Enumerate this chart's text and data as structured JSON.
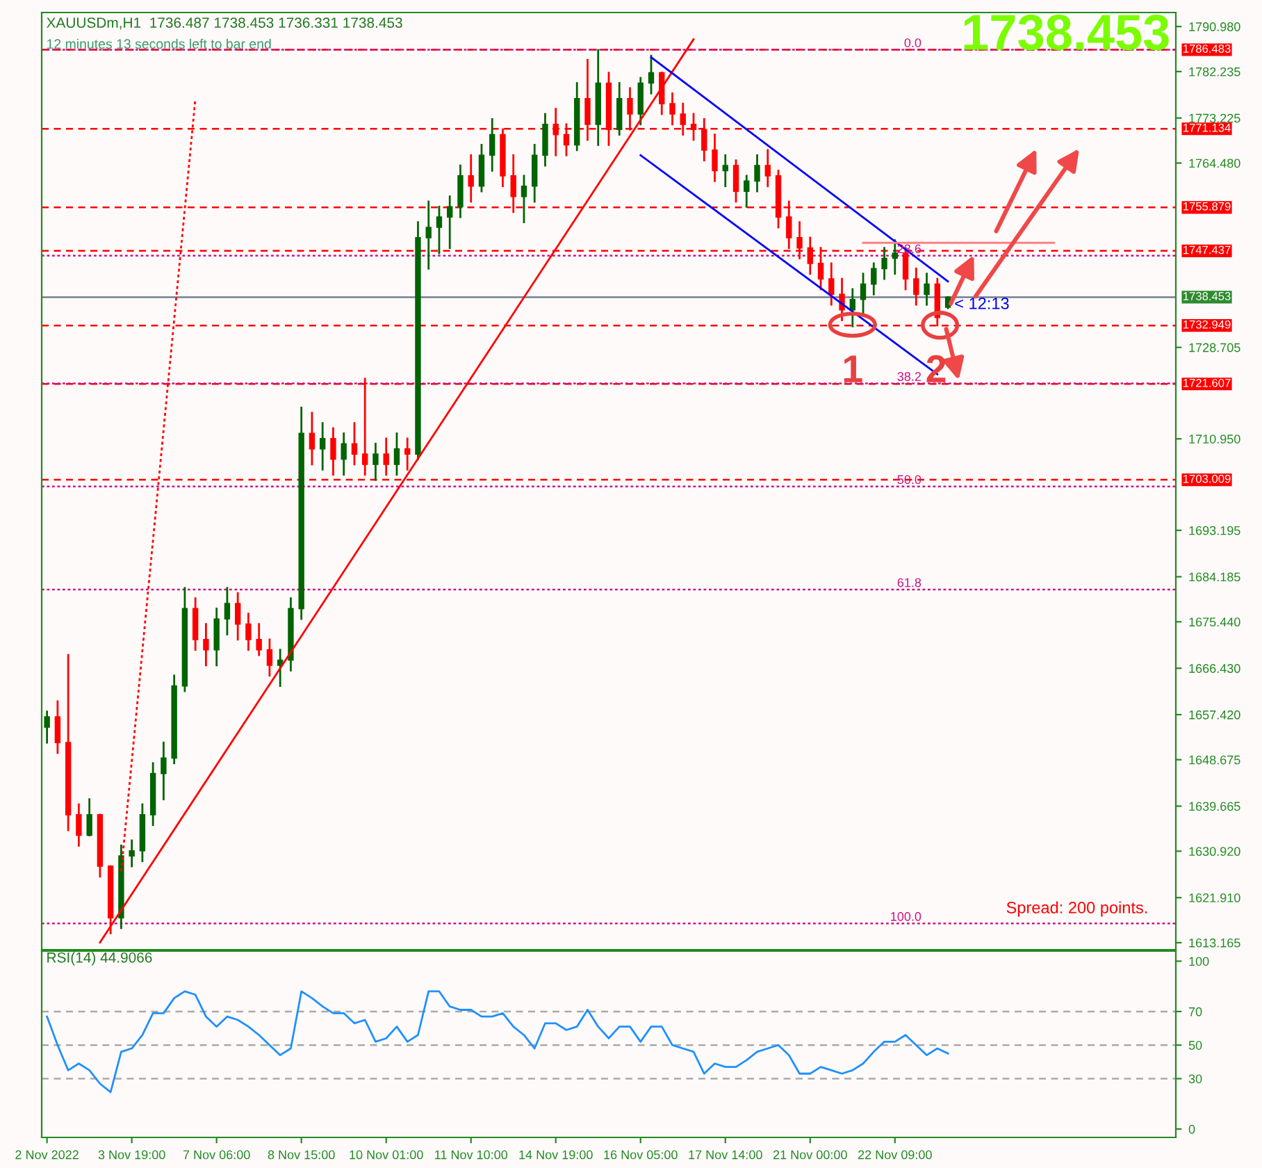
{
  "chart_data": [
    {
      "type": "candlestick",
      "title": "XAUUSDm,H1  1736.487 1738.453 1736.331 1738.453",
      "subtitle": "12 minutes 13 seconds left to bar end",
      "categories": [
        null,
        null,
        null,
        null,
        null,
        null,
        null,
        null,
        null,
        null,
        null,
        null,
        null,
        null,
        null,
        null,
        null,
        null,
        null,
        null,
        null,
        null,
        null,
        null,
        null,
        null,
        null,
        null,
        null,
        null,
        null,
        null,
        null,
        null,
        null,
        null,
        null,
        null,
        null,
        null,
        null,
        null,
        null,
        null,
        null,
        null,
        null,
        null,
        null,
        null,
        null,
        null,
        null,
        null,
        null,
        null,
        null,
        null,
        null,
        null,
        null,
        null,
        null,
        null,
        null,
        null,
        null,
        null,
        null,
        null,
        null,
        null,
        null,
        null,
        null,
        null,
        null,
        null,
        null,
        null,
        null,
        null,
        null,
        null,
        null,
        null,
        null,
        null,
        null,
        null,
        null,
        null,
        null,
        null,
        null,
        null,
        null,
        null,
        null,
        null,
        null,
        null,
        null,
        null,
        null,
        null,
        null
      ],
      "ohlc": [
        [
          1655,
          1658,
          1652,
          1657
        ],
        [
          1657,
          1660,
          1650,
          1652
        ],
        [
          1652,
          1669,
          1635,
          1638
        ],
        [
          1638,
          1640,
          1632,
          1634
        ],
        [
          1634,
          1641,
          1634,
          1638
        ],
        [
          1638,
          1638,
          1626,
          1628
        ],
        [
          1628,
          1628,
          1615,
          1618
        ],
        [
          1618,
          1632,
          1616,
          1630
        ],
        [
          1630,
          1633,
          1628,
          1631
        ],
        [
          1631,
          1640,
          1629,
          1638
        ],
        [
          1638,
          1648,
          1636,
          1646
        ],
        [
          1646,
          1652,
          1641,
          1649
        ],
        [
          1649,
          1665,
          1648,
          1663
        ],
        [
          1663,
          1682,
          1662,
          1678
        ],
        [
          1678,
          1680,
          1670,
          1672
        ],
        [
          1672,
          1675,
          1667,
          1670
        ],
        [
          1670,
          1678,
          1667,
          1676
        ],
        [
          1676,
          1682,
          1673,
          1679
        ],
        [
          1679,
          1681,
          1672,
          1675
        ],
        [
          1675,
          1677,
          1670,
          1672
        ],
        [
          1672,
          1675,
          1669,
          1670
        ],
        [
          1670,
          1672,
          1665,
          1667
        ],
        [
          1667,
          1670,
          1663,
          1668
        ],
        [
          1668,
          1680,
          1666,
          1678
        ],
        [
          1678,
          1717,
          1676,
          1712
        ],
        [
          1712,
          1716,
          1706,
          1709
        ],
        [
          1709,
          1714,
          1705,
          1711
        ],
        [
          1711,
          1713,
          1704,
          1707
        ],
        [
          1707,
          1712,
          1704,
          1710
        ],
        [
          1710,
          1714,
          1706,
          1708
        ],
        [
          1708,
          1722.6,
          1704,
          1706
        ],
        [
          1706,
          1710,
          1703,
          1708
        ],
        [
          1708,
          1711,
          1704,
          1706
        ],
        [
          1706,
          1712,
          1704,
          1709
        ],
        [
          1709,
          1711,
          1705,
          1708
        ],
        [
          1708,
          1753,
          1707,
          1750
        ],
        [
          1750,
          1757,
          1744,
          1752
        ],
        [
          1752,
          1756,
          1747,
          1754
        ],
        [
          1754,
          1758,
          1748,
          1756
        ],
        [
          1756,
          1764,
          1754,
          1762
        ],
        [
          1762,
          1766,
          1757,
          1760
        ],
        [
          1760,
          1768,
          1759,
          1766
        ],
        [
          1766,
          1773,
          1763,
          1770
        ],
        [
          1770,
          1771,
          1760,
          1762
        ],
        [
          1762,
          1766,
          1755,
          1758
        ],
        [
          1758,
          1762,
          1753,
          1760
        ],
        [
          1760,
          1768,
          1757,
          1766
        ],
        [
          1766,
          1774,
          1764,
          1772
        ],
        [
          1772,
          1775,
          1766,
          1770
        ],
        [
          1770,
          1772,
          1766,
          1768
        ],
        [
          1768,
          1780,
          1767,
          1777
        ],
        [
          1777,
          1784.5,
          1769,
          1772
        ],
        [
          1772,
          1786.4,
          1768,
          1780
        ],
        [
          1780,
          1782,
          1768,
          1771
        ],
        [
          1771,
          1780,
          1770,
          1777
        ],
        [
          1777,
          1779,
          1771,
          1774
        ],
        [
          1774,
          1781,
          1772,
          1780
        ],
        [
          1780,
          1785.3,
          1778,
          1782
        ],
        [
          1782,
          1782,
          1774,
          1776
        ],
        [
          1776,
          1778,
          1772,
          1774
        ],
        [
          1774,
          1776,
          1770,
          1772
        ],
        [
          1772,
          1774,
          1769,
          1771
        ],
        [
          1771,
          1773,
          1765,
          1767
        ],
        [
          1767,
          1770,
          1761,
          1763
        ],
        [
          1763,
          1766,
          1760,
          1764
        ],
        [
          1764,
          1765,
          1757,
          1759
        ],
        [
          1759,
          1762,
          1756,
          1761
        ],
        [
          1761,
          1766,
          1759,
          1764
        ],
        [
          1764,
          1767,
          1760,
          1762
        ],
        [
          1762,
          1763,
          1752,
          1754
        ],
        [
          1754,
          1757,
          1748,
          1750
        ],
        [
          1750,
          1753,
          1746,
          1748
        ],
        [
          1748,
          1750,
          1743,
          1745
        ],
        [
          1745,
          1748,
          1740,
          1742
        ],
        [
          1742,
          1745,
          1737,
          1739
        ],
        [
          1739,
          1742,
          1734,
          1736
        ],
        [
          1736,
          1740,
          1732.8,
          1738
        ],
        [
          1738,
          1743,
          1735,
          1741
        ],
        [
          1741,
          1745,
          1739,
          1744
        ],
        [
          1744,
          1748,
          1742,
          1746
        ],
        [
          1746,
          1749.5,
          1743,
          1747
        ],
        [
          1747,
          1748,
          1740,
          1742
        ],
        [
          1742,
          1744,
          1737,
          1739
        ],
        [
          1739,
          1743,
          1737,
          1741
        ],
        [
          1741,
          1742,
          1733,
          1734.5
        ],
        [
          1736.487,
          1738.453,
          1736.331,
          1738.453
        ],
        null,
        null,
        null,
        null,
        null,
        null,
        null,
        null,
        null,
        null,
        null,
        null,
        null,
        null,
        null,
        null,
        null,
        null,
        null,
        null,
        null
      ],
      "colors": [
        "#006400",
        "#ff0000",
        "#ff0000",
        "#ff0000",
        "#006400",
        "#ff0000",
        "#ff0000",
        "#006400",
        "#006400",
        "#006400",
        "#006400",
        "#006400",
        "#006400",
        "#006400",
        "#ff0000",
        "#ff0000",
        "#006400",
        "#006400",
        "#ff0000",
        "#ff0000",
        "#ff0000",
        "#ff0000",
        "#006400",
        "#006400",
        "#006400",
        "#ff0000",
        "#006400",
        "#ff0000",
        "#006400",
        "#ff0000",
        "#ff0000",
        "#006400",
        "#ff0000",
        "#006400",
        "#ff0000",
        "#006400",
        "#006400",
        "#006400",
        "#006400",
        "#006400",
        "#ff0000",
        "#006400",
        "#006400",
        "#ff0000",
        "#ff0000",
        "#006400",
        "#006400",
        "#006400",
        "#ff0000",
        "#ff0000",
        "#006400",
        "#ff0000",
        "#006400",
        "#ff0000",
        "#006400",
        "#ff0000",
        "#006400",
        "#006400",
        "#ff0000",
        "#ff0000",
        "#ff0000",
        "#ff0000",
        "#ff0000",
        "#ff0000",
        "#006400",
        "#ff0000",
        "#006400",
        "#006400",
        "#ff0000",
        "#ff0000",
        "#ff0000",
        "#ff0000",
        "#ff0000",
        "#ff0000",
        "#ff0000",
        "#ff0000",
        "#006400",
        "#006400",
        "#006400",
        "#006400",
        "#006400",
        "#ff0000",
        "#ff0000",
        "#006400",
        "#ff0000",
        "#006400",
        null,
        null,
        null,
        null,
        null,
        null,
        null,
        null,
        null,
        null,
        null,
        null,
        null,
        null,
        null,
        null,
        null,
        null,
        null,
        null,
        null
      ],
      "ylim": [
        1611.8,
        1793.7
      ],
      "yticks": [
        {
          "value": 1790.98,
          "label": "1790.980"
        },
        1782.235,
        1773.225,
        {
          "value": 1764.48,
          "label": "1764.480"
        },
        1728.705,
        {
          "value": 1710.95,
          "label": "1710.950"
        },
        1693.195,
        1684.185,
        {
          "value": 1675.44,
          "label": "1675.440"
        },
        {
          "value": 1666.43,
          "label": "1666.430"
        },
        {
          "value": 1657.42,
          "label": "1657.420"
        },
        1648.675,
        1639.665,
        {
          "value": 1630.92,
          "label": "1630.920"
        },
        {
          "value": 1621.91,
          "label": "1621.910"
        },
        1613.165
      ],
      "ref_lines": [
        {
          "axis": "y",
          "value": 1786.483,
          "label": "1786.483",
          "color": "#ff0000",
          "line_style": "dashed"
        },
        {
          "axis": "y",
          "value": 1771.134,
          "label": "1771.134",
          "color": "#ff0000",
          "line_style": "dashed"
        },
        {
          "axis": "y",
          "value": 1755.879,
          "label": "1755.879",
          "color": "#ff0000",
          "line_style": "dashed"
        },
        {
          "axis": "y",
          "value": 1747.437,
          "label": "1747.437",
          "color": "#ff0000",
          "line_style": "dashed"
        },
        {
          "axis": "y",
          "value": 1738.453,
          "label": "1738.453",
          "color": "#708090",
          "line_style": "solid"
        },
        {
          "axis": "y",
          "value": 1732.949,
          "label": "1732.949",
          "color": "#ff0000",
          "line_style": "dashed"
        },
        {
          "axis": "y",
          "value": 1721.607,
          "label": "1721.607",
          "color": "#ff0000",
          "line_style": "dashed"
        },
        {
          "axis": "y",
          "value": 1703.009,
          "label": "1703.009",
          "color": "#ff0000",
          "line_style": "dashed"
        },
        {
          "axis": "y",
          "value": 1786.48,
          "color": "#c71585",
          "line_style": "dotted"
        },
        {
          "axis": "y",
          "value": 1746.5,
          "color": "#c71585",
          "line_style": "dotted"
        },
        {
          "axis": "y",
          "value": 1721.7,
          "color": "#c71585",
          "line_style": "dotted"
        },
        {
          "axis": "y",
          "value": 1701.7,
          "color": "#c71585",
          "line_style": "dotted"
        },
        {
          "axis": "y",
          "value": 1681.7,
          "color": "#c71585",
          "line_style": "dotted"
        },
        {
          "axis": "y",
          "value": 1616.9,
          "color": "#c71585",
          "line_style": "dotted"
        }
      ],
      "series": [
        {
          "type": "line",
          "values": [
            null,
            null,
            null,
            null,
            null,
            1613.2,
            null,
            null,
            null,
            null,
            null,
            null,
            null,
            null,
            null,
            null,
            null,
            null,
            null,
            null,
            null,
            null,
            null,
            null,
            null,
            null,
            null,
            null,
            null,
            null,
            null,
            null,
            null,
            null,
            null,
            null,
            null,
            null,
            null,
            null,
            null,
            null,
            null,
            null,
            null,
            null,
            null,
            null,
            null,
            null,
            null,
            null,
            null,
            null,
            null,
            null,
            null,
            null,
            null,
            null,
            null,
            1788.5,
            null,
            null,
            null,
            null,
            null,
            null,
            null,
            null,
            null,
            null,
            null,
            null,
            null,
            null,
            null,
            null,
            null,
            null,
            null,
            null,
            null,
            null,
            null,
            null,
            null,
            null,
            null,
            null,
            null,
            null,
            null,
            null,
            null,
            null,
            null,
            null,
            null,
            null,
            null,
            null,
            null,
            null,
            null,
            null,
            null
          ],
          "color": "#ff0000",
          "line_style": "solid"
        },
        {
          "type": "line",
          "values": [
            null,
            null,
            null,
            null,
            null,
            null,
            null,
            1627,
            null,
            null,
            null,
            null,
            null,
            null,
            1777,
            null,
            null,
            null,
            null,
            null,
            null,
            null,
            null,
            null,
            null,
            null,
            null,
            null,
            null,
            null,
            null,
            null,
            null,
            null,
            null,
            null,
            null,
            null,
            null,
            null,
            null,
            null,
            null,
            null,
            null,
            null,
            null,
            null,
            null,
            null,
            null,
            null,
            null,
            null,
            null,
            null,
            null,
            null,
            null,
            null,
            null,
            null,
            null,
            null,
            null,
            null,
            null,
            null,
            null,
            null,
            null,
            null,
            null,
            null,
            null,
            null,
            null,
            null,
            null,
            null,
            null,
            null,
            null,
            null,
            null,
            null,
            null,
            null,
            null,
            null,
            null,
            null,
            null,
            null,
            null,
            null,
            null,
            null,
            null,
            null,
            null,
            null,
            null,
            null,
            null,
            null,
            null
          ],
          "color": "#ff0000",
          "line_style": "dotted"
        },
        {
          "type": "line",
          "values": [
            null,
            null,
            null,
            null,
            null,
            null,
            null,
            null,
            null,
            null,
            null,
            null,
            null,
            null,
            null,
            null,
            null,
            null,
            null,
            null,
            null,
            null,
            null,
            null,
            null,
            null,
            null,
            null,
            null,
            null,
            null,
            null,
            null,
            null,
            null,
            null,
            null,
            null,
            null,
            null,
            null,
            null,
            null,
            null,
            null,
            null,
            null,
            null,
            null,
            null,
            null,
            null,
            null,
            null,
            null,
            null,
            null,
            1785,
            null,
            null,
            null,
            null,
            null,
            null,
            null,
            null,
            null,
            null,
            null,
            null,
            null,
            null,
            null,
            null,
            null,
            null,
            null,
            null,
            null,
            null,
            null,
            null,
            null,
            null,
            null,
            1741.5,
            null,
            null,
            null,
            null,
            null,
            null,
            null,
            null,
            null,
            null,
            null,
            null,
            null,
            null,
            null,
            null,
            null,
            null,
            null,
            null,
            null
          ],
          "color": "#0000ff",
          "line_style": "solid"
        },
        {
          "type": "line",
          "values": [
            null,
            null,
            null,
            null,
            null,
            null,
            null,
            null,
            null,
            null,
            null,
            null,
            null,
            null,
            null,
            null,
            null,
            null,
            null,
            null,
            null,
            null,
            null,
            null,
            null,
            null,
            null,
            null,
            null,
            null,
            null,
            null,
            null,
            null,
            null,
            null,
            null,
            null,
            null,
            null,
            null,
            null,
            null,
            null,
            null,
            null,
            null,
            null,
            null,
            null,
            null,
            null,
            null,
            null,
            null,
            null,
            1766,
            null,
            null,
            null,
            null,
            null,
            null,
            null,
            null,
            null,
            null,
            null,
            null,
            null,
            null,
            null,
            null,
            null,
            null,
            null,
            null,
            null,
            null,
            null,
            null,
            null,
            null,
            null,
            1723.5,
            null,
            null,
            null,
            null,
            null,
            null,
            null,
            null,
            null,
            null,
            null,
            null,
            null,
            null,
            null,
            null,
            null,
            null,
            null,
            null,
            null,
            null
          ],
          "color": "#0000ff",
          "line_style": "solid"
        },
        {
          "type": "line",
          "values": [
            null,
            null,
            null,
            null,
            null,
            null,
            null,
            null,
            null,
            null,
            null,
            null,
            null,
            null,
            null,
            null,
            null,
            null,
            null,
            null,
            null,
            null,
            null,
            null,
            null,
            null,
            null,
            null,
            null,
            null,
            null,
            null,
            null,
            null,
            null,
            null,
            null,
            null,
            null,
            null,
            null,
            null,
            null,
            null,
            null,
            null,
            null,
            null,
            null,
            null,
            null,
            null,
            null,
            null,
            null,
            null,
            null,
            null,
            null,
            null,
            null,
            null,
            null,
            null,
            null,
            null,
            null,
            null,
            null,
            null,
            null,
            null,
            null,
            null,
            null,
            null,
            null,
            1749,
            null,
            null,
            null,
            null,
            null,
            null,
            null,
            null,
            null,
            null,
            null,
            null,
            null,
            null,
            null,
            null,
            null,
            1749,
            null,
            null,
            null,
            null,
            null,
            null,
            null,
            null,
            null,
            null,
            null
          ],
          "color": "#ff8080",
          "line_style": "solid"
        }
      ],
      "annotations": [
        "1738.453",
        {
          "text": "< 12:13",
          "y": 1738.453
        },
        "1",
        "2",
        "Spread: 200 points.",
        {
          "text": "0.0",
          "y": 1786.48
        },
        {
          "text": "23.6",
          "y": 1746.5
        },
        {
          "text": "38.2",
          "y": 1721.7
        },
        {
          "text": "50.0",
          "y": 1701.7
        },
        {
          "text": "61.8",
          "y": 1681.7
        },
        {
          "text": "100.0",
          "y": 1616.9
        }
      ]
    },
    {
      "type": "line",
      "title": "RSI(14) 44.9066",
      "categories": [
        "2 Nov 2022",
        null,
        null,
        null,
        null,
        null,
        null,
        null,
        "3 Nov 19:00",
        null,
        null,
        null,
        null,
        null,
        null,
        null,
        "7 Nov 06:00",
        null,
        null,
        null,
        null,
        null,
        null,
        null,
        "8 Nov 15:00",
        null,
        null,
        null,
        null,
        null,
        null,
        null,
        "10 Nov 01:00",
        null,
        null,
        null,
        null,
        null,
        null,
        null,
        "11 Nov 10:00",
        null,
        null,
        null,
        null,
        null,
        null,
        null,
        "14 Nov 19:00",
        null,
        null,
        null,
        null,
        null,
        null,
        null,
        "16 Nov 05:00",
        null,
        null,
        null,
        null,
        null,
        null,
        null,
        "17 Nov 14:00",
        null,
        null,
        null,
        null,
        null,
        null,
        null,
        "21 Nov 00:00",
        null,
        null,
        null,
        null,
        null,
        null,
        null,
        "22 Nov 09:00",
        null,
        null,
        null,
        null,
        null,
        null,
        null,
        null,
        null,
        null,
        null,
        null,
        null,
        null,
        null,
        null,
        null,
        null,
        null,
        null,
        null,
        null,
        null,
        null,
        null,
        null
      ],
      "series": [
        {
          "color": "#1e90ff",
          "values": [
            67,
            50,
            35,
            39,
            35,
            27,
            22,
            46,
            48,
            56,
            69,
            69,
            78,
            82,
            80,
            67,
            61,
            67,
            65,
            61,
            56,
            50,
            44,
            48,
            82,
            78,
            73,
            69,
            69,
            63,
            65,
            52,
            54,
            61,
            52,
            56,
            82,
            82,
            73,
            71,
            71,
            67,
            67,
            69,
            61,
            56,
            48,
            63,
            63,
            59,
            61,
            71,
            61,
            54,
            61,
            61,
            52,
            61,
            61,
            50,
            48,
            46,
            33,
            39,
            37,
            37,
            41,
            46,
            48,
            50,
            44,
            33,
            33,
            37,
            35,
            33,
            35,
            39,
            46,
            52,
            52,
            56,
            50,
            44,
            48,
            45,
            null,
            null,
            null,
            null,
            null,
            null,
            null,
            null,
            null,
            null,
            null,
            null,
            null,
            null,
            null,
            null,
            null,
            null,
            null,
            null,
            null
          ]
        }
      ],
      "ylim": [
        -5,
        106
      ],
      "yticks": [
        0,
        30,
        50,
        70,
        100
      ],
      "ref_lines": [
        {
          "axis": "y",
          "value": 70,
          "color": "#a9a9a9",
          "line_style": "dashed"
        },
        {
          "axis": "y",
          "value": 50,
          "color": "#a9a9a9",
          "line_style": "dashed"
        },
        {
          "axis": "y",
          "value": 30,
          "color": "#a9a9a9",
          "line_style": "dashed"
        }
      ]
    }
  ]
}
